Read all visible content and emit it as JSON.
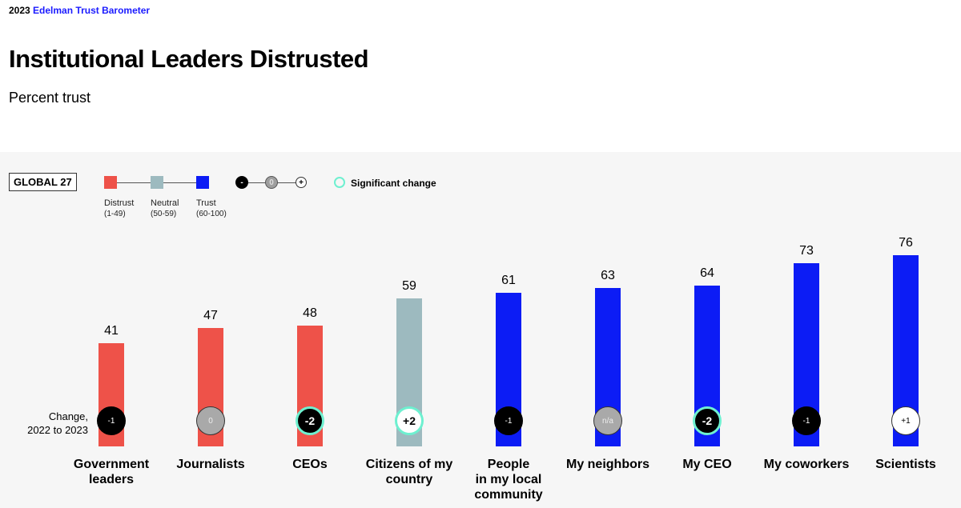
{
  "header": {
    "year": "2023",
    "brand": "Edelman Trust Barometer",
    "title": "Institutional Leaders Distrusted",
    "subtitle": "Percent trust"
  },
  "legend": {
    "global": "GLOBAL 27",
    "distrust": "Distrust",
    "distrust_range": "(1-49)",
    "neutral": "Neutral",
    "neutral_range": "(50-59)",
    "trust": "Trust",
    "trust_range": "(60-100)",
    "minus": "-",
    "zero": "0",
    "plus": "+",
    "significant": "Significant change",
    "change_label_1": "Change,",
    "change_label_2": "2022 to 2023"
  },
  "colors": {
    "distrust": "#ee5249",
    "neutral": "#9dbabf",
    "trust": "#0c1cf5",
    "significant": "#6ef0d0"
  },
  "chart_data": {
    "type": "bar",
    "title": "Institutional Leaders Distrusted",
    "subtitle": "Percent trust",
    "ylim": [
      0,
      100
    ],
    "grid": false,
    "categories": [
      "Government leaders",
      "Journalists",
      "CEOs",
      "Citizens of my country",
      "People in my local community",
      "My neighbors",
      "My CEO",
      "My coworkers",
      "Scientists"
    ],
    "category_lines": [
      [
        "Government",
        "leaders"
      ],
      [
        "Journalists"
      ],
      [
        "CEOs"
      ],
      [
        "Citizens of my",
        "country"
      ],
      [
        "People",
        "in my local",
        "community"
      ],
      [
        "My neighbors"
      ],
      [
        "My CEO"
      ],
      [
        "My coworkers"
      ],
      [
        "Scientists"
      ]
    ],
    "values": [
      41,
      47,
      48,
      59,
      61,
      63,
      64,
      73,
      76
    ],
    "change": [
      "-1",
      "0",
      "-2",
      "+2",
      "-1",
      "n/a",
      "-2",
      "-1",
      "+1"
    ],
    "significant": [
      false,
      false,
      true,
      true,
      false,
      false,
      true,
      false,
      false
    ]
  }
}
